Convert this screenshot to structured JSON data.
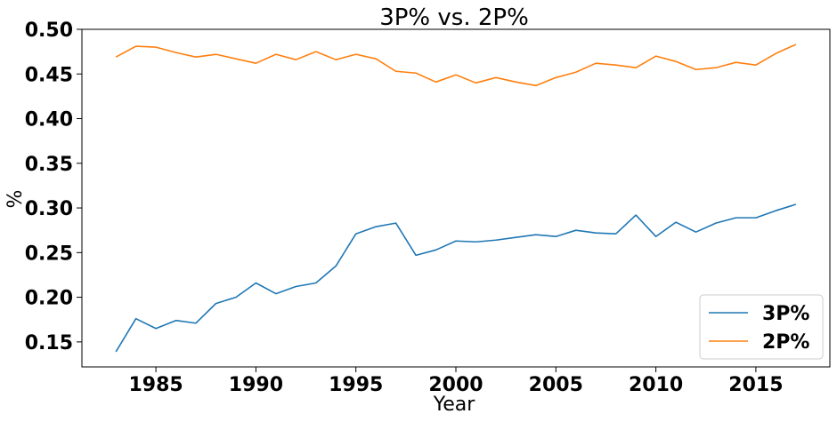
{
  "chart_data": {
    "type": "line",
    "title": "3P% vs. 2P%",
    "xlabel": "Year",
    "ylabel": "%",
    "xlim": [
      1981.3,
      2018.7
    ],
    "ylim": [
      0.122,
      0.5
    ],
    "xticks": [
      1985,
      1990,
      1995,
      2000,
      2005,
      2010,
      2015
    ],
    "yticks": [
      0.15,
      0.2,
      0.25,
      0.3,
      0.35,
      0.4,
      0.45,
      0.5
    ],
    "ytick_labels": [
      "0.15",
      "0.20",
      "0.25",
      "0.30",
      "0.35",
      "0.40",
      "0.45",
      "0.50"
    ],
    "grid": false,
    "legend_position": "lower-right",
    "x": [
      1983,
      1984,
      1985,
      1986,
      1987,
      1988,
      1989,
      1990,
      1991,
      1992,
      1993,
      1994,
      1995,
      1996,
      1997,
      1998,
      1999,
      2000,
      2001,
      2002,
      2003,
      2004,
      2005,
      2006,
      2007,
      2008,
      2009,
      2010,
      2011,
      2012,
      2013,
      2014,
      2015,
      2016,
      2017
    ],
    "series": [
      {
        "name": "3P%",
        "color": "#1f77b4",
        "values": [
          0.139,
          0.176,
          0.165,
          0.174,
          0.171,
          0.193,
          0.2,
          0.216,
          0.204,
          0.212,
          0.216,
          0.235,
          0.271,
          0.279,
          0.283,
          0.247,
          0.253,
          0.263,
          0.262,
          0.264,
          0.267,
          0.27,
          0.268,
          0.275,
          0.272,
          0.271,
          0.292,
          0.268,
          0.284,
          0.273,
          0.283,
          0.289,
          0.289,
          0.297,
          0.304
        ]
      },
      {
        "name": "2P%",
        "color": "#ff7f0e",
        "values": [
          0.469,
          0.481,
          0.48,
          0.474,
          0.469,
          0.472,
          0.467,
          0.462,
          0.472,
          0.466,
          0.475,
          0.466,
          0.472,
          0.467,
          0.453,
          0.451,
          0.441,
          0.449,
          0.44,
          0.446,
          0.441,
          0.437,
          0.446,
          0.452,
          0.462,
          0.46,
          0.457,
          0.47,
          0.464,
          0.455,
          0.457,
          0.463,
          0.46,
          0.473,
          0.483
        ]
      }
    ]
  }
}
